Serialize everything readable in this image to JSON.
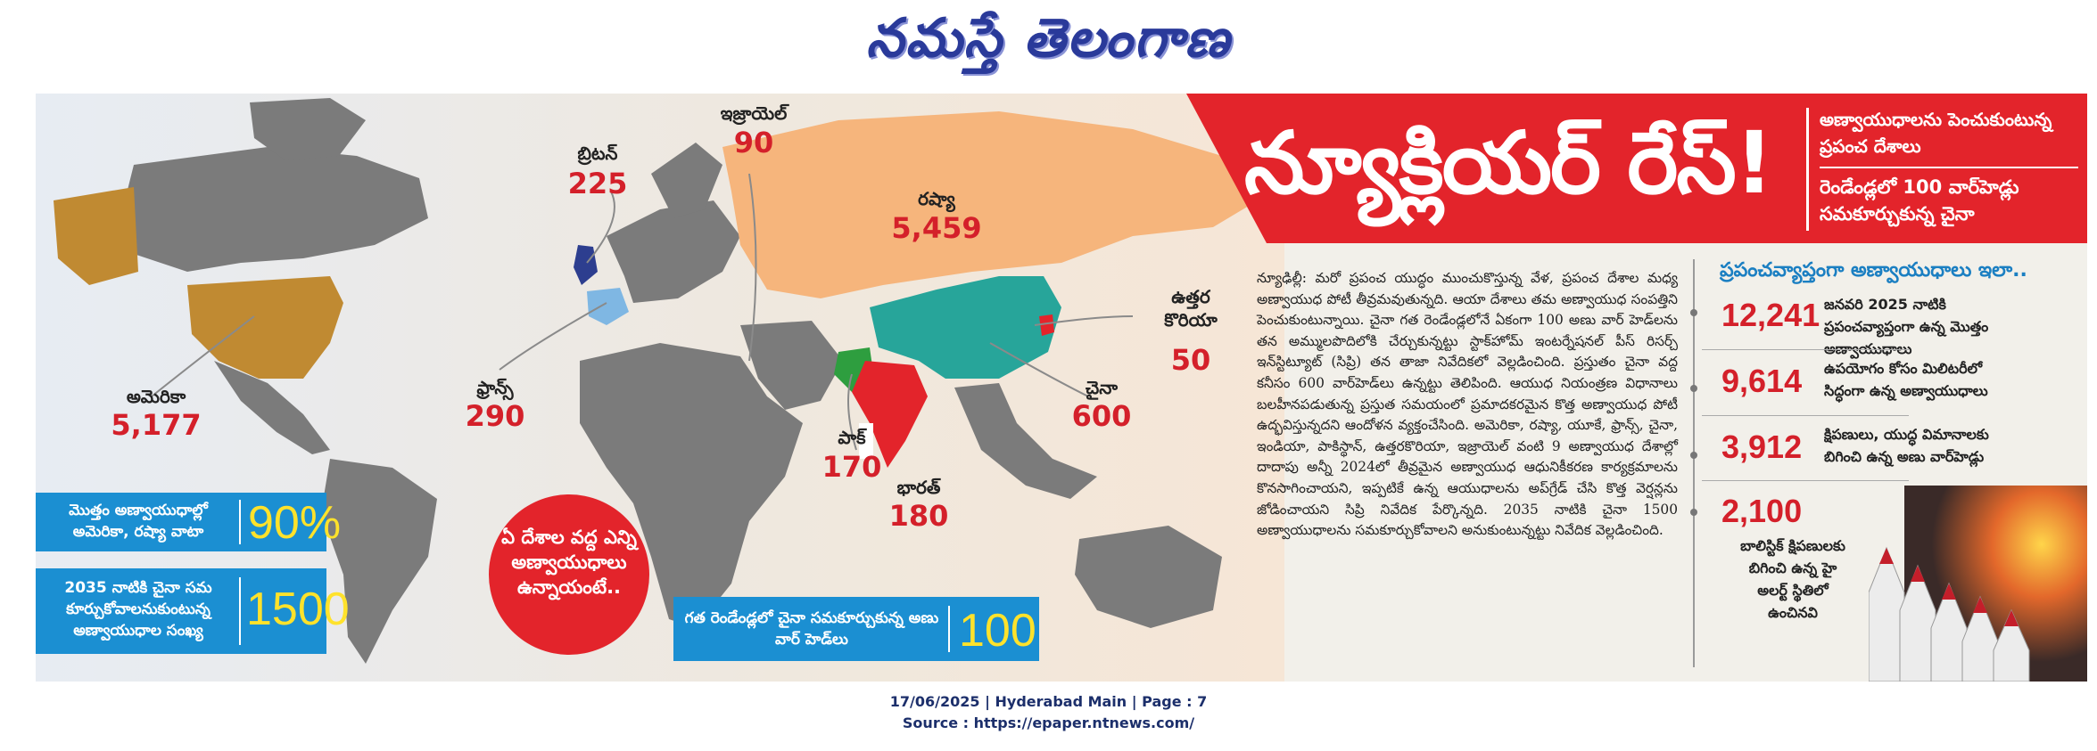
{
  "masthead": {
    "title": "నమస్తే తెలంగాణ"
  },
  "headline": {
    "title": "న్యూక్లియర్ రేస్!",
    "sub1": "అణ్వాయుధాలను పెంచుకుంటున్న ప్రపంచ దేశాలు",
    "sub2": "రెండేండ్లలో 100 వార్‌హెడ్లు సమకూర్చుకున్న చైనా"
  },
  "countries": [
    {
      "name": "బ్రిటన్",
      "value": "225"
    },
    {
      "name": "ఇజ్రాయెల్",
      "value": "90"
    },
    {
      "name": "రష్యా",
      "value": "5,459"
    },
    {
      "name": "ఉత్తర కొరియా",
      "value": "50"
    },
    {
      "name": "అమెరికా",
      "value": "5,177"
    },
    {
      "name": "ఫ్రాన్స్",
      "value": "290"
    },
    {
      "name": "చైనా",
      "value": "600"
    },
    {
      "name": "పాక్",
      "value": "170"
    },
    {
      "name": "భారత్",
      "value": "180"
    }
  ],
  "infoboxes": {
    "share": {
      "text": "మొత్తం అణ్వాయుధాల్లో అమెరికా, రష్యా వాటా",
      "value": "90%"
    },
    "china2035": {
      "text": "2035 నాటికి చైనా సమ కూర్చుకోవాలనుకుంటున్న అణ్వాయుధాల సంఖ్య",
      "value": "1500"
    },
    "china2yrs": {
      "text": "గత రెండేండ్లలో చైనా సమకూర్చుకున్న అణు వార్ హెడ్‌లు",
      "value": "100"
    }
  },
  "circle": {
    "text": "ఏ దేశాల వద్ద ఎన్ని అణ్వాయుధాలు ఉన్నాయంటే.."
  },
  "article": {
    "body": "న్యూఢిల్లీ: మరో ప్రపంచ యుద్ధం ముంచుకొస్తున్న వేళ, ప్రపంచ దేశాల మధ్య అణ్వాయుధ పోటీ తీవ్రమవుతున్నది. ఆయా దేశాలు తమ అణ్వాయుధ సంపత్తిని పెంచుకుంటున్నాయి. చైనా గత రెండేండ్లలోనే ఏకంగా 100 అణు వార్ హెడ్‌లను తన అమ్ములపొదిలోకి చేర్చుకున్నట్టు స్టాక్‌హోమ్ ఇంటర్నేషనల్ పీస్ రిసర్చ్ ఇన్‌స్టిట్యూట్ (సిప్రి) తన తాజా నివేదికలో వెల్లడించింది. ప్రస్తుతం చైనా వద్ద కనీసం 600 వార్‌హెడ్‌లు ఉన్నట్టు తెలిపింది. ఆయుధ నియంత్రణ విధానాలు బలహీనపడుతున్న ప్రస్తుత సమయంలో ప్రమాదకరమైన కొత్త అణ్వాయుధ పోటీ ఉద్భవిస్తున్నదని ఆందోళన వ్యక్తంచేసింది. అమెరికా, రష్యా, యూకే, ఫ్రాన్స్, చైనా, ఇండియా, పాకిస్థాన్, ఉత్తరకొరియా, ఇజ్రాయెల్ వంటి 9 అణ్వాయుధ దేశాల్లో దాదాపు అన్నీ 2024లో తీవ్రమైన అణ్వాయుధ ఆధునికీకరణ కార్యక్రమాలను కొనసాగించాయని, ఇప్పటికే ఉన్న ఆయుధాలను అప్‌గ్రేడ్ చేసి కొత్త వెర్షన్లను జోడించాయని సిప్రి నివేదిక పేర్కొన్నది. 2035 నాటికి చైనా 1500 అణ్వాయుధాలను సమకూర్చుకోవాలని అనుకుంటున్నట్టు నివేదిక వెల్లడించింది."
  },
  "stats": {
    "title": "ప్రపంచవ్యాప్తంగా అణ్వాయుధాలు ఇలా..",
    "items": [
      {
        "value": "12,241",
        "text": "జనవరి 2025 నాటికి ప్రపంచవ్యాప్తంగా ఉన్న మొత్తం అణ్వాయుధాలు"
      },
      {
        "value": "9,614",
        "text": "ఉపయోగం కోసం మిలిటరీలో సిద్ధంగా ఉన్న అణ్వాయుధాలు"
      },
      {
        "value": "3,912",
        "text": "క్షిపణులు, యుద్ధ విమానాలకు బిగించి ఉన్న అణు వార్‌హెడ్లు"
      },
      {
        "value": "2,100",
        "text": "బాలిస్టిక్ క్షిపణులకు బిగించి ఉన్న హై అలర్ట్ స్థితిలో ఉంచినవి"
      }
    ]
  },
  "footer": {
    "line1": "17/06/2025 | Hyderabad Main | Page : 7",
    "line2": "Source : https://epaper.ntnews.com/"
  },
  "colors": {
    "accent_red": "#e3242b",
    "box_blue": "#1b8fd2",
    "value_red": "#d4202a",
    "russia": "#f6b57c",
    "usa": "#c08a32",
    "china": "#27a59a",
    "india": "#e3242b"
  }
}
